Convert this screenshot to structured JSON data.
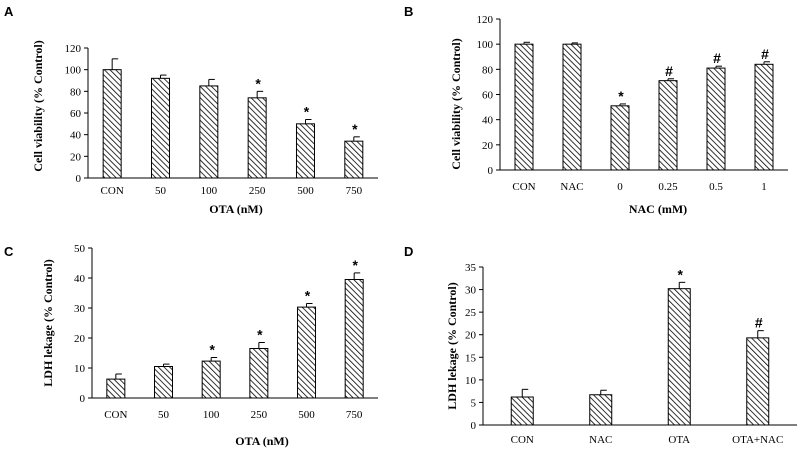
{
  "chart_data": [
    {
      "panel": "A",
      "type": "bar",
      "categories": [
        "CON",
        "50",
        "100",
        "250",
        "500",
        "750"
      ],
      "values": [
        100,
        92,
        85,
        74,
        50,
        34
      ],
      "errors": [
        10,
        3,
        6,
        6,
        4,
        4
      ],
      "markers": [
        "",
        "",
        "",
        "*",
        "*",
        "*"
      ],
      "xlabel": "OTA (nM)",
      "ylabel": "Cell viability (% Control)",
      "ylim": [
        0,
        120
      ],
      "yticks": [
        "0",
        "20",
        "40",
        "60",
        "80",
        "100",
        "120"
      ]
    },
    {
      "panel": "B",
      "type": "bar",
      "categories": [
        "CON",
        "NAC",
        "0",
        "0.25",
        "0.5",
        "1"
      ],
      "values": [
        100,
        100,
        51,
        71,
        81,
        84
      ],
      "errors": [
        1.5,
        1,
        1.5,
        1.5,
        1.5,
        2
      ],
      "markers": [
        "",
        "",
        "*",
        "#",
        "#",
        "#"
      ],
      "xlabel": "NAC (mM)",
      "ylabel": "Cell viability  (% Control)",
      "ylim": [
        0,
        120
      ],
      "yticks": [
        "0",
        "20",
        "40",
        "60",
        "80",
        "100",
        "120"
      ]
    },
    {
      "panel": "C",
      "type": "bar",
      "categories": [
        "CON",
        "50",
        "100",
        "250",
        "500",
        "750"
      ],
      "values": [
        6.3,
        10.5,
        12.3,
        16.5,
        30.3,
        39.5
      ],
      "errors": [
        1.7,
        0.8,
        1.2,
        2.0,
        1.2,
        2.2
      ],
      "markers": [
        "",
        "",
        "*",
        "*",
        "*",
        "*"
      ],
      "xlabel": "OTA (nM)",
      "ylabel": "LDH lekage  (% Control)",
      "ylim": [
        0,
        50
      ],
      "yticks": [
        "0",
        "10",
        "20",
        "30",
        "40",
        "50"
      ]
    },
    {
      "panel": "D",
      "type": "bar",
      "categories": [
        "CON",
        "NAC",
        "OTA",
        "OTA+NAC"
      ],
      "values": [
        6.2,
        6.7,
        30.2,
        19.3
      ],
      "errors": [
        1.7,
        1.0,
        1.4,
        1.6
      ],
      "markers": [
        "",
        "",
        "*",
        "#"
      ],
      "xlabel": "",
      "ylabel": "LDH lekage (% Control)",
      "ylim": [
        0,
        35
      ],
      "yticks": [
        "0",
        "5",
        "10",
        "15",
        "20",
        "25",
        "30",
        "35"
      ]
    }
  ]
}
